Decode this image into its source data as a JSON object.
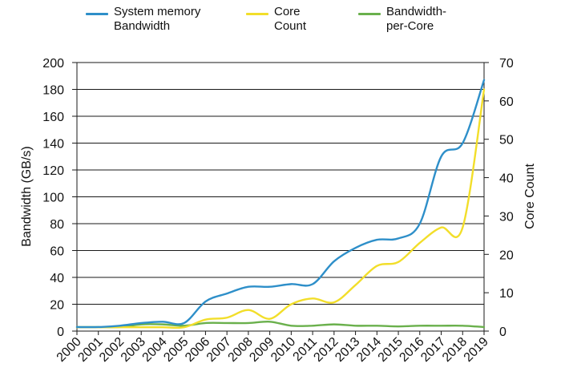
{
  "chart_data": {
    "type": "line",
    "x": [
      "2000",
      "2001",
      "2002",
      "2003",
      "2004",
      "2005",
      "2006",
      "2007",
      "2008",
      "2009",
      "2010",
      "2011",
      "2012",
      "2013",
      "2014",
      "2015",
      "2016",
      "2017",
      "2018",
      "2019"
    ],
    "ylabel": "Bandwidth (GB/s)",
    "y2label": "Core Count",
    "ylim": [
      0,
      200
    ],
    "y2lim": [
      0,
      70
    ],
    "yticks": [
      0,
      20,
      40,
      60,
      80,
      100,
      120,
      140,
      160,
      180,
      200
    ],
    "y2ticks": [
      0,
      10,
      20,
      30,
      40,
      50,
      60,
      70
    ],
    "grid": true,
    "legend_position": "top",
    "series": [
      {
        "name": "System memory\nBandwidth",
        "axis": "left",
        "color": "#2e8fc9",
        "values": [
          3,
          3,
          4,
          6,
          7,
          6,
          22,
          28,
          33,
          33,
          35,
          35,
          52,
          62,
          68,
          69,
          80,
          130,
          140,
          187
        ]
      },
      {
        "name": "Core\nCount",
        "axis": "right",
        "color": "#f2de2a",
        "values": [
          1,
          1,
          1,
          1,
          1,
          1,
          3,
          3.5,
          5.5,
          3.2,
          7,
          8.5,
          7.5,
          12,
          17,
          18,
          23,
          27,
          27,
          63
        ]
      },
      {
        "name": "Bandwidth-\nper-Core",
        "axis": "left",
        "color": "#6ab04c",
        "values": [
          3,
          3,
          3,
          5,
          5,
          4,
          6,
          6,
          6,
          7,
          4,
          4,
          5,
          4,
          4,
          3.5,
          4,
          4,
          4,
          3
        ]
      }
    ]
  }
}
